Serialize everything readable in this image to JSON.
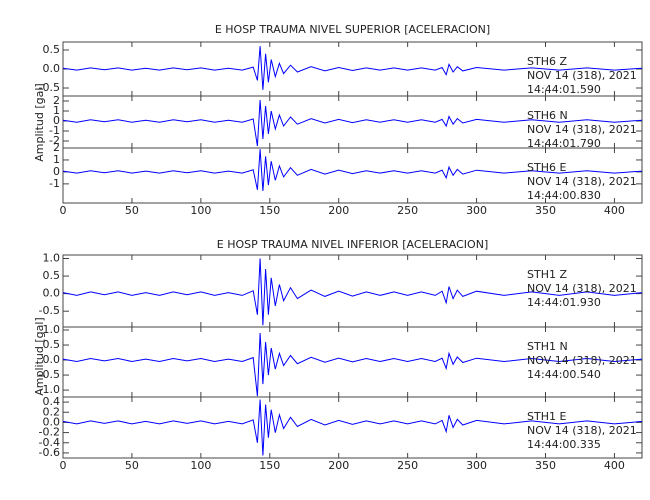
{
  "chart_data": [
    {
      "type": "line",
      "title": "E HOSP TRAUMA NIVEL SUPERIOR [ACELERACION]",
      "ylabel": "Amplitud [gal]",
      "x": [
        0,
        10,
        20,
        30,
        40,
        50,
        60,
        70,
        80,
        90,
        100,
        110,
        120,
        130,
        138,
        141,
        143,
        145,
        147,
        149,
        151,
        154,
        157,
        160,
        165,
        170,
        180,
        190,
        200,
        210,
        220,
        230,
        240,
        250,
        260,
        270,
        275,
        278,
        280,
        283,
        286,
        290,
        300,
        320,
        340,
        360,
        380,
        400,
        420
      ],
      "xlim": [
        0,
        420
      ],
      "xticks": [
        0,
        50,
        100,
        150,
        200,
        250,
        300,
        350,
        400
      ],
      "panels": [
        {
          "ylim": [
            -0.71,
            0.71
          ],
          "yticks": [
            -0.5,
            {
              "value": 0,
              "label": "0.0"
            },
            0.5
          ],
          "annotations": [
            "STH6   Z",
            "NOV 14 (318), 2021",
            "14:44:01.590"
          ],
          "color": "#0000ff",
          "values": [
            0.02,
            -0.03,
            0.03,
            -0.02,
            0.03,
            -0.03,
            0.02,
            -0.03,
            0.03,
            -0.02,
            0.03,
            -0.03,
            0.02,
            -0.03,
            0.05,
            -0.3,
            0.6,
            -0.55,
            0.4,
            -0.35,
            0.25,
            -0.2,
            0.15,
            -0.12,
            0.1,
            -0.08,
            0.06,
            -0.05,
            0.04,
            -0.04,
            0.03,
            -0.03,
            0.03,
            -0.03,
            0.03,
            -0.03,
            0.04,
            -0.15,
            0.12,
            -0.08,
            0.06,
            -0.05,
            0.04,
            -0.03,
            0.03,
            -0.03,
            0.03,
            -0.03,
            0.02
          ]
        },
        {
          "ylim": [
            -2.7,
            2.5
          ],
          "yticks": [
            -2,
            -1,
            0,
            1,
            2
          ],
          "annotations": [
            "STH6   N",
            "NOV 14 (318), 2021",
            "14:44:01.790"
          ],
          "color": "#0000ff",
          "values": [
            0.08,
            -0.12,
            0.12,
            -0.08,
            0.12,
            -0.12,
            0.08,
            -0.12,
            0.12,
            -0.08,
            0.12,
            -0.12,
            0.08,
            -0.12,
            0.2,
            -2.5,
            2.1,
            -1.8,
            1.5,
            -1.3,
            1.0,
            -0.8,
            0.6,
            -0.5,
            0.4,
            -0.32,
            0.24,
            -0.2,
            0.16,
            -0.16,
            0.12,
            -0.12,
            0.12,
            -0.12,
            0.12,
            -0.12,
            0.16,
            -0.5,
            0.45,
            -0.32,
            0.24,
            -0.2,
            0.16,
            -0.12,
            0.12,
            -0.12,
            0.12,
            -0.12,
            0.08
          ]
        },
        {
          "ylim": [
            -2.6,
            2.0
          ],
          "yticks": [
            -1,
            0,
            1,
            2
          ],
          "annotations": [
            "STH6   E",
            "NOV 14 (318), 2021",
            "14:44:00.830"
          ],
          "color": "#0000ff",
          "values": [
            0.07,
            -0.1,
            0.1,
            -0.07,
            0.1,
            -0.1,
            0.07,
            -0.1,
            0.1,
            -0.07,
            0.1,
            -0.1,
            0.07,
            -0.1,
            0.18,
            -1.5,
            1.9,
            -1.6,
            1.3,
            -1.1,
            0.9,
            -0.7,
            0.5,
            -0.42,
            0.35,
            -0.28,
            0.21,
            -0.18,
            0.14,
            -0.14,
            0.1,
            -0.1,
            0.1,
            -0.1,
            0.1,
            -0.1,
            0.14,
            -0.5,
            0.4,
            -0.28,
            0.21,
            -0.18,
            0.14,
            -0.1,
            0.1,
            -0.1,
            0.1,
            -0.1,
            0.07
          ]
        }
      ]
    },
    {
      "type": "line",
      "title": "E HOSP TRAUMA NIVEL INFERIOR [ACELERACION]",
      "ylabel": "Amplitud [gal]",
      "x": [
        0,
        10,
        20,
        30,
        40,
        50,
        60,
        70,
        80,
        90,
        100,
        110,
        120,
        130,
        138,
        141,
        143,
        145,
        147,
        149,
        151,
        154,
        157,
        160,
        165,
        170,
        180,
        190,
        200,
        210,
        220,
        230,
        240,
        250,
        260,
        270,
        275,
        278,
        280,
        283,
        286,
        290,
        300,
        320,
        340,
        360,
        380,
        400,
        420
      ],
      "xlim": [
        0,
        420
      ],
      "xticks": [
        0,
        50,
        100,
        150,
        200,
        250,
        300,
        350,
        400
      ],
      "panels": [
        {
          "ylim": [
            -0.95,
            1.1
          ],
          "yticks": [
            -0.5,
            {
              "value": 0,
              "label": "0.0"
            },
            0.5,
            {
              "value": 1,
              "label": "1.0"
            }
          ],
          "annotations": [
            "STH1   Z",
            "NOV 14 (318), 2021",
            "14:44:01.930"
          ],
          "color": "#0000ff",
          "values": [
            0.03,
            -0.05,
            0.05,
            -0.03,
            0.05,
            -0.05,
            0.03,
            -0.05,
            0.05,
            -0.03,
            0.05,
            -0.05,
            0.03,
            -0.05,
            0.08,
            -0.6,
            1.0,
            -0.9,
            0.7,
            -0.6,
            0.45,
            -0.35,
            0.26,
            -0.2,
            0.17,
            -0.14,
            0.1,
            -0.08,
            0.07,
            -0.07,
            0.05,
            -0.05,
            0.05,
            -0.05,
            0.05,
            -0.05,
            0.07,
            -0.26,
            0.2,
            -0.14,
            0.1,
            -0.08,
            0.07,
            -0.05,
            0.05,
            -0.05,
            0.05,
            -0.05,
            0.03
          ]
        },
        {
          "ylim": [
            -1.23,
            1.1
          ],
          "yticks": [
            {
              "value": -1,
              "label": "-1.0"
            },
            -0.5,
            {
              "value": 0,
              "label": "0.0"
            },
            0.5,
            {
              "value": 1,
              "label": "1.0"
            }
          ],
          "annotations": [
            "STH1   N",
            "NOV 14 (318), 2021",
            "14:44:00.540"
          ],
          "color": "#0000ff",
          "values": [
            0.03,
            -0.05,
            0.05,
            -0.03,
            0.05,
            -0.05,
            0.03,
            -0.05,
            0.05,
            -0.03,
            0.05,
            -0.05,
            0.03,
            -0.05,
            0.08,
            -1.2,
            0.9,
            -0.8,
            0.6,
            -0.5,
            0.4,
            -0.3,
            0.22,
            -0.18,
            0.15,
            -0.12,
            0.09,
            -0.07,
            0.06,
            -0.06,
            0.05,
            -0.05,
            0.05,
            -0.05,
            0.05,
            -0.05,
            0.06,
            -0.28,
            0.22,
            -0.14,
            0.1,
            -0.08,
            0.06,
            -0.05,
            0.05,
            -0.05,
            0.05,
            -0.05,
            0.03
          ]
        },
        {
          "ylim": [
            -0.7,
            0.5
          ],
          "yticks": [
            -0.6,
            -0.4,
            -0.2,
            {
              "value": 0,
              "label": "0.0"
            },
            0.2,
            0.4
          ],
          "annotations": [
            "STH1   E",
            "NOV 14 (318), 2021",
            "14:44:00.335"
          ],
          "color": "#0000ff",
          "values": [
            0.02,
            -0.03,
            0.03,
            -0.02,
            0.03,
            -0.03,
            0.02,
            -0.03,
            0.03,
            -0.02,
            0.03,
            -0.03,
            0.02,
            -0.03,
            0.05,
            -0.4,
            0.45,
            -0.65,
            0.35,
            -0.3,
            0.25,
            -0.2,
            0.15,
            -0.12,
            0.1,
            -0.08,
            0.06,
            -0.05,
            0.04,
            -0.04,
            0.03,
            -0.03,
            0.03,
            -0.03,
            0.03,
            -0.03,
            0.04,
            -0.18,
            0.14,
            -0.1,
            0.06,
            -0.05,
            0.04,
            -0.03,
            0.03,
            -0.03,
            0.03,
            -0.03,
            0.02
          ]
        }
      ]
    }
  ]
}
